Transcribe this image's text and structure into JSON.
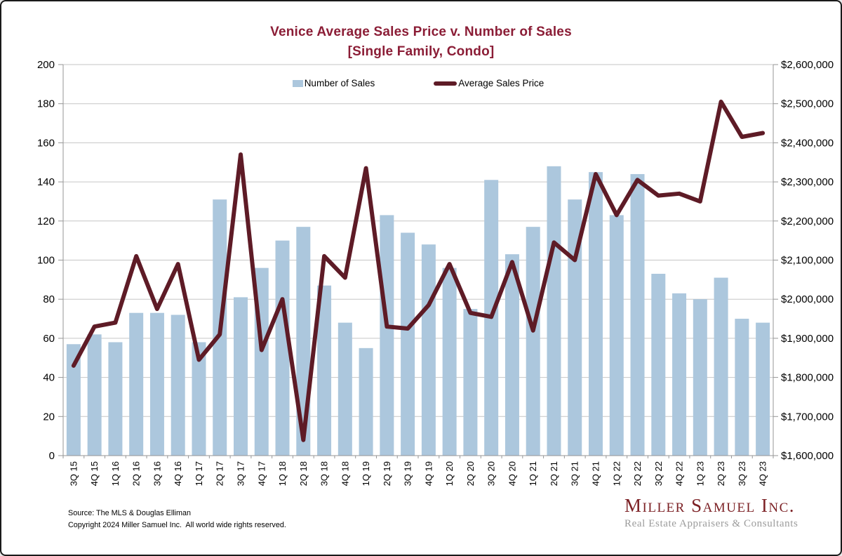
{
  "title": {
    "line1": "Venice Average Sales Price v. Number of Sales",
    "line2": "[Single Family, Condo]"
  },
  "legend": [
    {
      "label": "Number of Sales",
      "type": "bar"
    },
    {
      "label": "Average Sales Price",
      "type": "line"
    }
  ],
  "chart_data": {
    "type": "bar",
    "subtype": "combo-bar-line-dual-axis",
    "title": "Venice Average Sales Price v. Number of Sales [Single Family, Condo]",
    "grid": "horizontal-on",
    "legend_position": "top-center",
    "categories": [
      "3Q 15",
      "4Q 15",
      "1Q 16",
      "2Q 16",
      "3Q 16",
      "4Q 16",
      "1Q 17",
      "2Q 17",
      "3Q 17",
      "4Q 17",
      "1Q 18",
      "2Q 18",
      "3Q 18",
      "4Q 18",
      "1Q 19",
      "2Q 19",
      "3Q 19",
      "4Q 19",
      "1Q 20",
      "2Q 20",
      "3Q 20",
      "4Q 20",
      "1Q 21",
      "2Q 21",
      "3Q 21",
      "4Q 21",
      "1Q 22",
      "2Q 22",
      "3Q 22",
      "4Q 22",
      "1Q 23",
      "2Q 23",
      "3Q 23",
      "4Q 23"
    ],
    "series": [
      {
        "name": "Number of Sales",
        "type": "bar",
        "axis": "left",
        "values": [
          57,
          62,
          58,
          73,
          73,
          72,
          58,
          131,
          81,
          96,
          110,
          117,
          87,
          68,
          55,
          123,
          114,
          108,
          96,
          75,
          141,
          103,
          117,
          148,
          131,
          145,
          123,
          144,
          93,
          83,
          80,
          91,
          70,
          68
        ]
      },
      {
        "name": "Average Sales Price",
        "type": "line",
        "axis": "right",
        "values": [
          1830000,
          1930000,
          1940000,
          2110000,
          1975000,
          2090000,
          1845000,
          1910000,
          2370000,
          1870000,
          2000000,
          1640000,
          2110000,
          2055000,
          2335000,
          1930000,
          1925000,
          1985000,
          2090000,
          1965000,
          1955000,
          2095000,
          1920000,
          2145000,
          2100000,
          2320000,
          2215000,
          2305000,
          2265000,
          2270000,
          2250000,
          2505000,
          2415000,
          2425000
        ]
      }
    ],
    "left_axis": {
      "min": 0,
      "max": 200,
      "step": 20,
      "tick_labels": [
        "0",
        "20",
        "40",
        "60",
        "80",
        "100",
        "120",
        "140",
        "160",
        "180",
        "200"
      ]
    },
    "right_axis": {
      "min": 1600000,
      "max": 2600000,
      "step": 100000,
      "tick_labels": [
        "$1,600,000",
        "$1,700,000",
        "$1,800,000",
        "$1,900,000",
        "$2,000,000",
        "$2,100,000",
        "$2,200,000",
        "$2,300,000",
        "$2,400,000",
        "$2,500,000",
        "$2,600,000"
      ]
    }
  },
  "footer": {
    "source_line1": "Source: The MLS & Douglas Elliman",
    "source_line2": "Copyright 2024 Miller Samuel Inc.  All world wide rights reserved."
  },
  "logo": {
    "name": "Miller Samuel Inc.",
    "tagline": "Real Estate Appraisers & Consultants"
  },
  "colors": {
    "title": "#8B1D36",
    "bar": "#ACC7DD",
    "line": "#5E1B26",
    "grid": "#C6C6C6",
    "axis": "#969696",
    "tick_text": "#000000",
    "logo_text": "#7C2125",
    "logo_tagline": "#9B9B9B"
  }
}
